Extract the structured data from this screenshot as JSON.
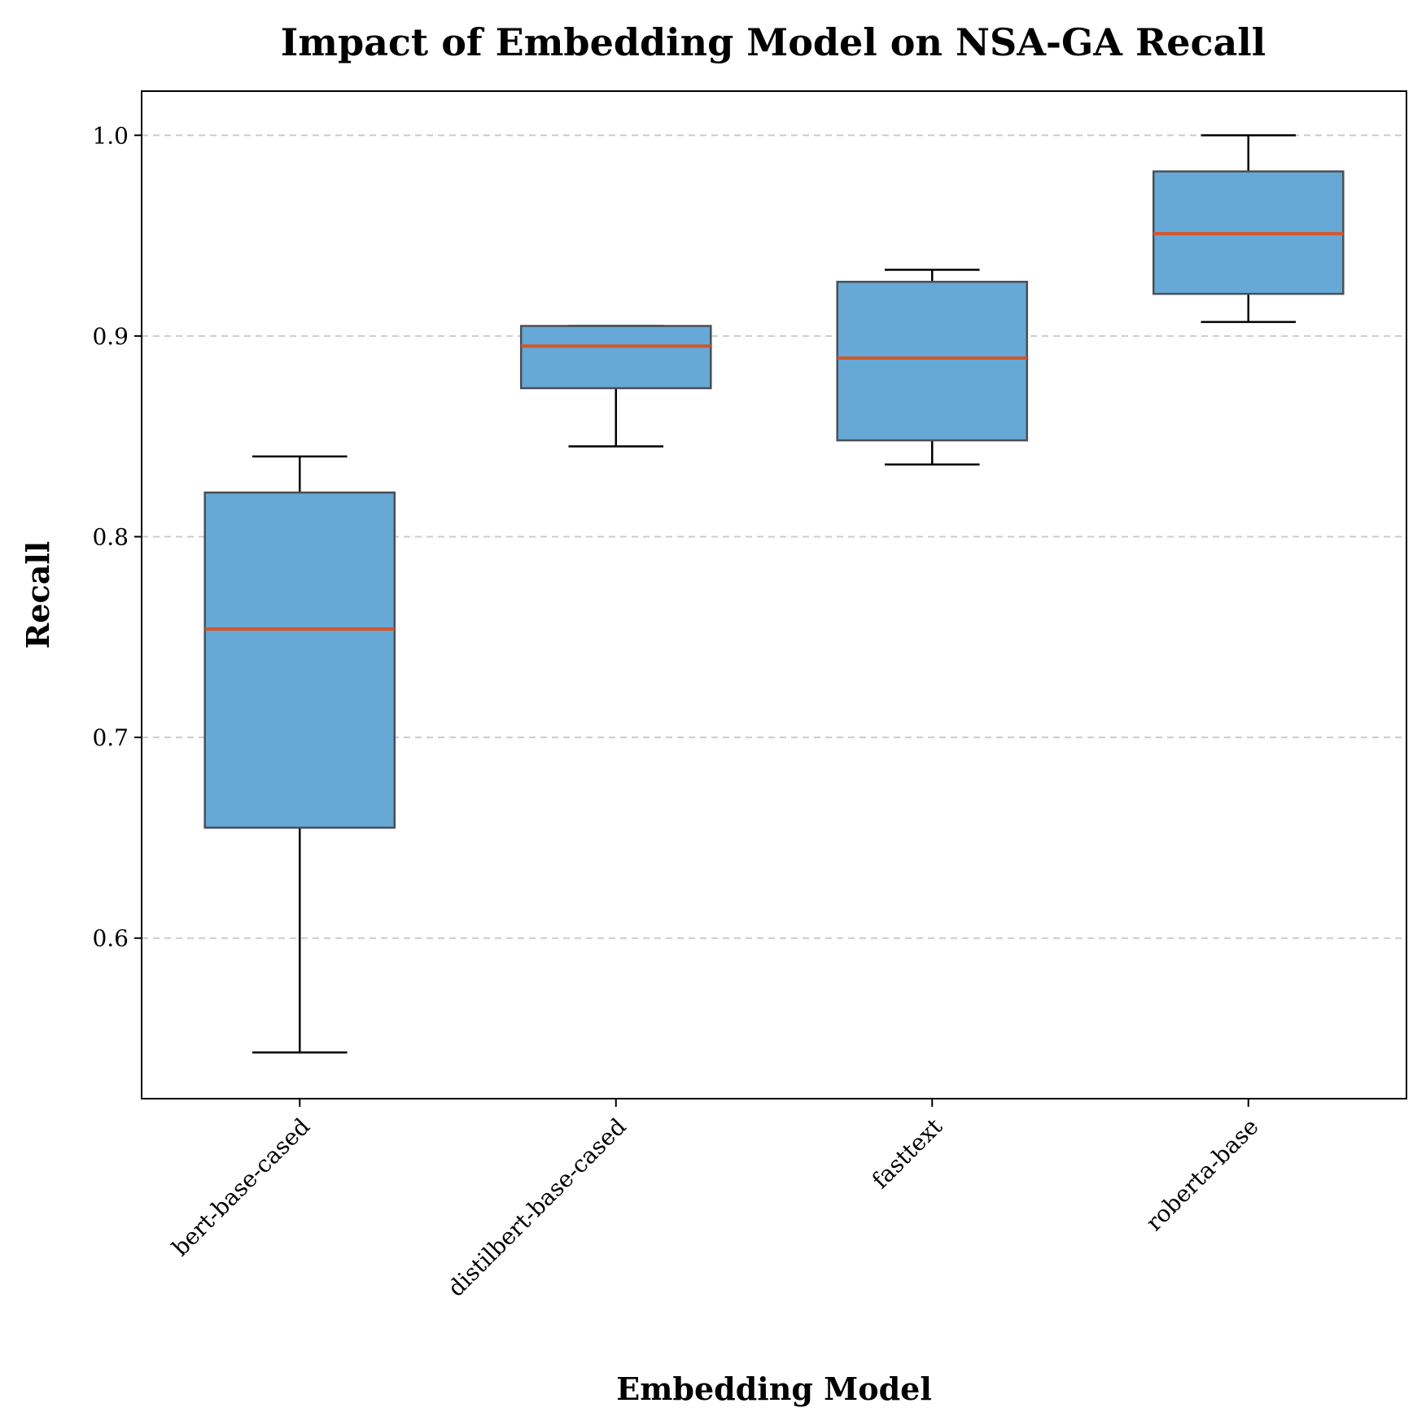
{
  "chart_data": {
    "type": "boxplot",
    "title": "Impact of Embedding Model on NSA-GA Recall",
    "xlabel": "Embedding Model",
    "ylabel": "Recall",
    "ylim": [
      0.52,
      1.022
    ],
    "yticks": [
      "0.6",
      "0.7",
      "0.8",
      "0.9",
      "1.0"
    ],
    "grid": "y, dashed",
    "categories": [
      "bert-base-cased",
      "distilbert-base-cased",
      "fasttext",
      "roberta-base"
    ],
    "boxes": [
      {
        "category": "bert-base-cased",
        "whisker_low": 0.543,
        "q1": 0.655,
        "median": 0.754,
        "q3": 0.822,
        "whisker_high": 0.84
      },
      {
        "category": "distilbert-base-cased",
        "whisker_low": 0.845,
        "q1": 0.874,
        "median": 0.895,
        "q3": 0.905,
        "whisker_high": 0.905
      },
      {
        "category": "fasttext",
        "whisker_low": 0.836,
        "q1": 0.848,
        "median": 0.889,
        "q3": 0.927,
        "whisker_high": 0.933
      },
      {
        "category": "roberta-base",
        "whisker_low": 0.907,
        "q1": 0.921,
        "median": 0.951,
        "q3": 0.982,
        "whisker_high": 1.0
      }
    ],
    "colors": {
      "box_fill": "#66a9d7",
      "box_edge": "#4a4f55",
      "median": "#d4552a",
      "whisker": "#000000",
      "grid": "#cccccc"
    }
  }
}
